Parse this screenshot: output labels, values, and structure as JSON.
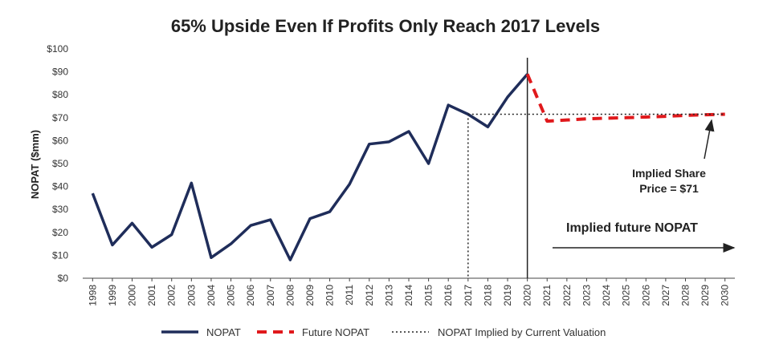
{
  "chart_data": {
    "type": "line",
    "title": "65% Upside Even If Profits Only Reach 2017 Levels",
    "ylabel": "NOPAT ($mm)",
    "xlabel": "",
    "ylim": [
      0,
      100
    ],
    "yticks": [
      "$0",
      "$10",
      "$20",
      "$30",
      "$40",
      "$50",
      "$60",
      "$70",
      "$80",
      "$90",
      "$100"
    ],
    "categories": [
      "1998",
      "1999",
      "2000",
      "2001",
      "2002",
      "2003",
      "2004",
      "2005",
      "2006",
      "2007",
      "2008",
      "2009",
      "2010",
      "2011",
      "2012",
      "2013",
      "2014",
      "2015",
      "2016",
      "2017",
      "2018",
      "2019",
      "2020",
      "2021",
      "2022",
      "2023",
      "2024",
      "2025",
      "2026",
      "2027",
      "2028",
      "2029",
      "2030"
    ],
    "series": [
      {
        "name": "NOPAT",
        "color": "#1f2d5a",
        "style": "solid",
        "x": [
          "1998",
          "1999",
          "2000",
          "2001",
          "2002",
          "2003",
          "2004",
          "2005",
          "2006",
          "2007",
          "2008",
          "2009",
          "2010",
          "2011",
          "2012",
          "2013",
          "2014",
          "2015",
          "2016",
          "2017",
          "2018",
          "2019",
          "2020"
        ],
        "values": [
          37,
          14.5,
          24,
          13.5,
          19,
          41.5,
          9,
          15,
          23,
          25.5,
          8,
          26,
          29,
          41,
          58.5,
          59.5,
          64,
          50,
          75.5,
          71.5,
          66,
          79,
          89
        ]
      },
      {
        "name": "Future NOPAT",
        "color": "#e0191c",
        "style": "dashed",
        "x": [
          "2020",
          "2021",
          "2022",
          "2023",
          "2024",
          "2025",
          "2026",
          "2027",
          "2028",
          "2029",
          "2030"
        ],
        "values": [
          89,
          68.5,
          69,
          69.5,
          69.8,
          70,
          70.3,
          70.6,
          71,
          71.3,
          71.5
        ]
      },
      {
        "name": "NOPAT Implied by Current Valuation",
        "color": "#222222",
        "style": "dotted",
        "x": [
          "2017",
          "2030"
        ],
        "values": [
          71.5,
          71.5
        ]
      }
    ],
    "annotations": {
      "implied_share_line1": "Implied Share",
      "implied_share_line2": "Price = $71",
      "implied_future": "Implied future NOPAT"
    },
    "grid": false,
    "legend_position": "bottom"
  }
}
